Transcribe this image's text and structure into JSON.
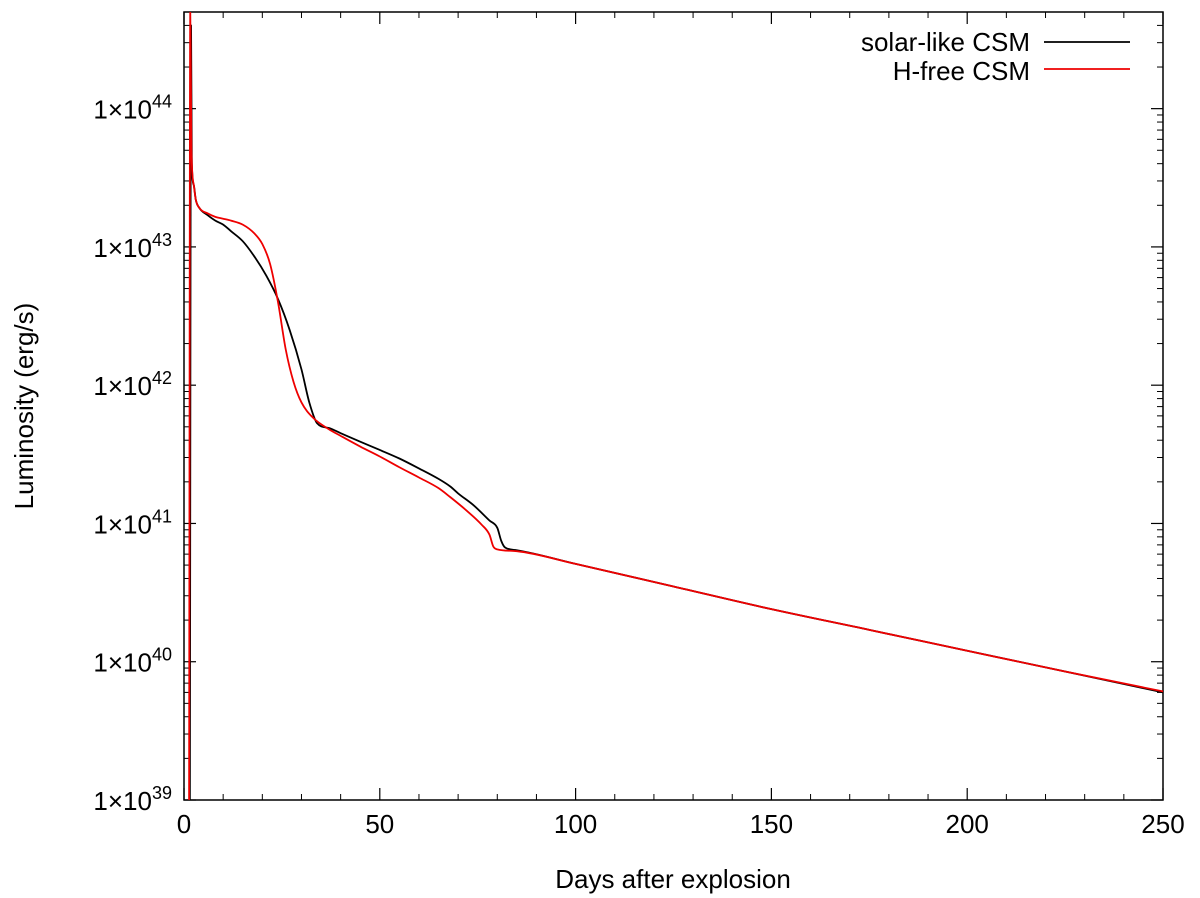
{
  "chart_data": {
    "type": "line",
    "xlabel": "Days after explosion",
    "ylabel": "Luminosity (erg/s)",
    "xlim": [
      0,
      250
    ],
    "ylim": [
      1e+39,
      5e+44
    ],
    "yscale": "log",
    "grid": false,
    "legend_position": "top-right",
    "x_ticks": [
      0,
      50,
      100,
      150,
      200,
      250
    ],
    "y_ticks": [
      {
        "exp": 39,
        "base": "1×10",
        "sup": "39"
      },
      {
        "exp": 40,
        "base": "1×10",
        "sup": "40"
      },
      {
        "exp": 41,
        "base": "1×10",
        "sup": "41"
      },
      {
        "exp": 42,
        "base": "1×10",
        "sup": "42"
      },
      {
        "exp": 43,
        "base": "1×10",
        "sup": "43"
      },
      {
        "exp": 44,
        "base": "1×10",
        "sup": "44"
      }
    ],
    "series": [
      {
        "name": "solar-like CSM",
        "color": "#000000",
        "points": [
          [
            1.5,
            1e+39
          ],
          [
            1.8,
            4e+44
          ],
          [
            2.0,
            4e+43
          ],
          [
            2.5,
            2.8e+43
          ],
          [
            3,
            2.2e+43
          ],
          [
            4,
            1.9e+43
          ],
          [
            6,
            1.7e+43
          ],
          [
            8,
            1.55e+43
          ],
          [
            10,
            1.45e+43
          ],
          [
            12,
            1.3e+43
          ],
          [
            15,
            1.1e+43
          ],
          [
            18,
            8.5e+42
          ],
          [
            21,
            6.2e+42
          ],
          [
            24,
            4.2e+42
          ],
          [
            27,
            2.5e+42
          ],
          [
            30,
            1.3e+42
          ],
          [
            32,
            7.5e+41
          ],
          [
            34,
            5.3e+41
          ],
          [
            37,
            4.9e+41
          ],
          [
            40,
            4.5e+41
          ],
          [
            45,
            3.9e+41
          ],
          [
            50,
            3.4e+41
          ],
          [
            55,
            2.95e+41
          ],
          [
            60,
            2.5e+41
          ],
          [
            65,
            2.1e+41
          ],
          [
            68,
            1.85e+41
          ],
          [
            70,
            1.65e+41
          ],
          [
            74,
            1.35e+41
          ],
          [
            78,
            1.05e+41
          ],
          [
            80,
            9.3e+40
          ],
          [
            81,
            7.5e+40
          ],
          [
            82,
            6.7e+40
          ],
          [
            85,
            6.4e+40
          ],
          [
            100,
            5.1e+40
          ],
          [
            125,
            3.5e+40
          ],
          [
            150,
            2.4e+40
          ],
          [
            175,
            1.7e+40
          ],
          [
            200,
            1.2e+40
          ],
          [
            225,
            8.5e+39
          ],
          [
            250,
            6e+39
          ]
        ]
      },
      {
        "name": "H-free CSM",
        "color": "#ee0000",
        "points": [
          [
            1.3,
            1e+39
          ],
          [
            1.6,
            5e+44
          ],
          [
            1.9,
            5e+43
          ],
          [
            2.5,
            2.8e+43
          ],
          [
            3,
            2.2e+43
          ],
          [
            4,
            1.9e+43
          ],
          [
            6,
            1.75e+43
          ],
          [
            8,
            1.65e+43
          ],
          [
            10,
            1.6e+43
          ],
          [
            12,
            1.55e+43
          ],
          [
            15,
            1.45e+43
          ],
          [
            18,
            1.25e+43
          ],
          [
            20,
            1.05e+43
          ],
          [
            22,
            7.5e+42
          ],
          [
            24,
            4e+42
          ],
          [
            26,
            1.8e+42
          ],
          [
            28,
            1.05e+42
          ],
          [
            30,
            7.5e+41
          ],
          [
            33,
            5.8e+41
          ],
          [
            37,
            4.8e+41
          ],
          [
            40,
            4.3e+41
          ],
          [
            45,
            3.6e+41
          ],
          [
            50,
            3.05e+41
          ],
          [
            55,
            2.55e+41
          ],
          [
            60,
            2.15e+41
          ],
          [
            65,
            1.8e+41
          ],
          [
            68,
            1.55e+41
          ],
          [
            72,
            1.25e+41
          ],
          [
            76,
            9.8e+40
          ],
          [
            78,
            8.3e+40
          ],
          [
            79,
            6.8e+40
          ],
          [
            80,
            6.5e+40
          ],
          [
            85,
            6.3e+40
          ],
          [
            100,
            5.1e+40
          ],
          [
            125,
            3.5e+40
          ],
          [
            150,
            2.4e+40
          ],
          [
            175,
            1.7e+40
          ],
          [
            200,
            1.2e+40
          ],
          [
            225,
            8.5e+39
          ],
          [
            250,
            6.1e+39
          ]
        ]
      }
    ]
  }
}
